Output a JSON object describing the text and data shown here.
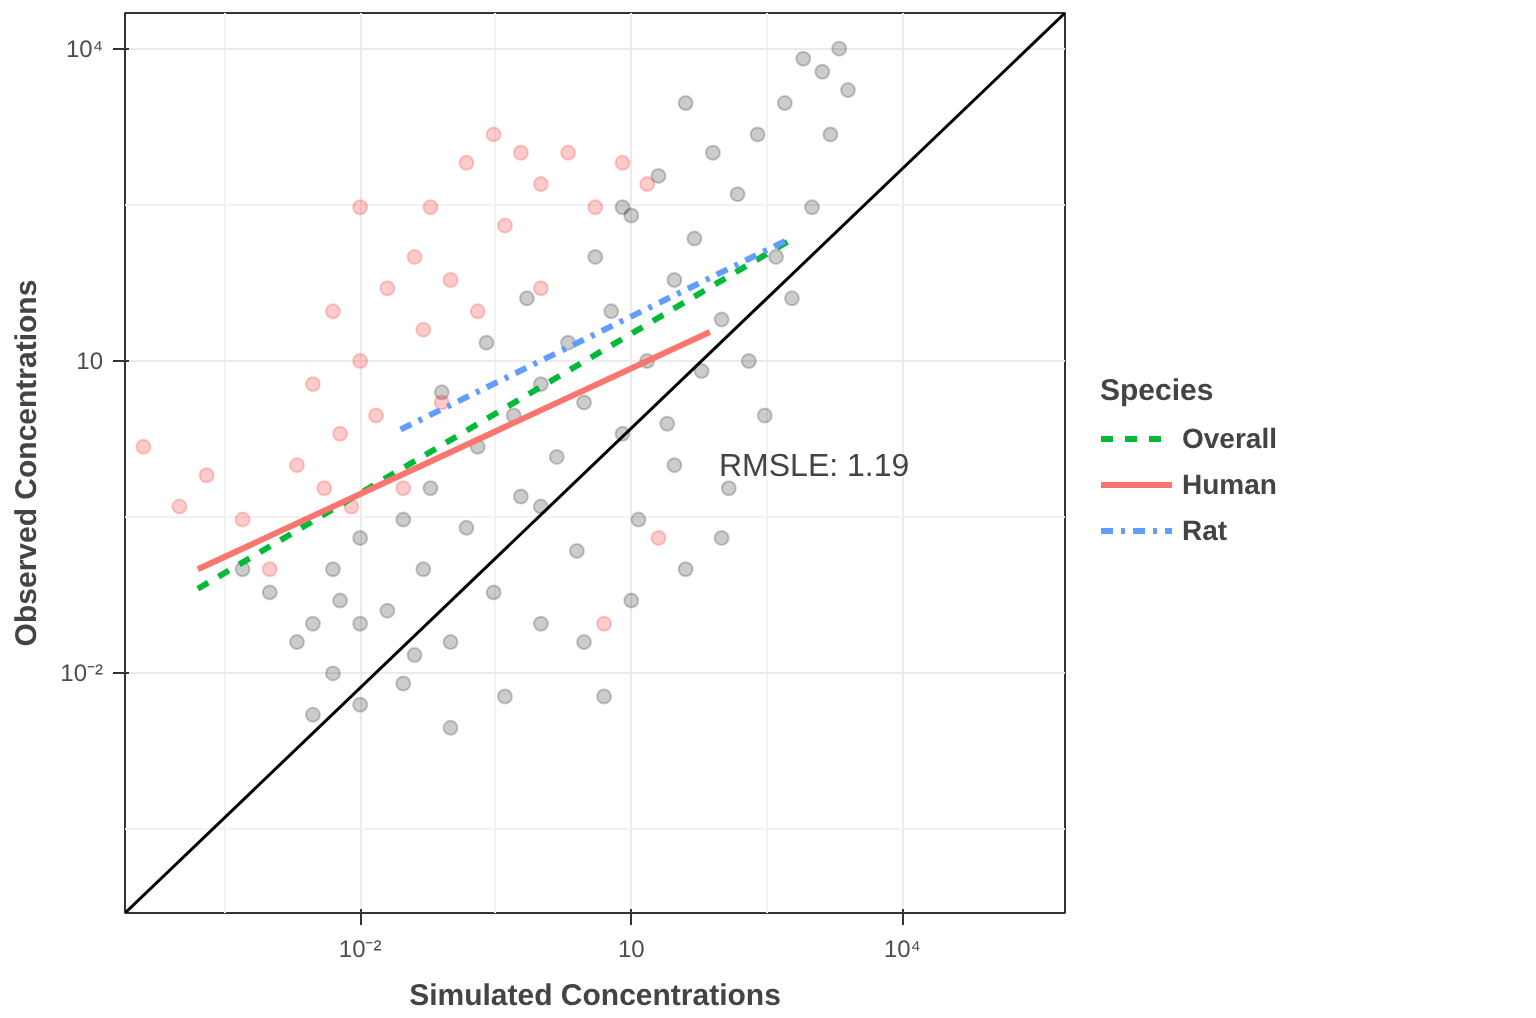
{
  "chart_data": {
    "type": "scatter",
    "xlabel": "Simulated Concentrations",
    "ylabel": "Observed Concentrations",
    "legend_title": "Species",
    "log": "xy",
    "grid": true,
    "legend": "right",
    "marker": "circle",
    "xlim": [
      2.5e-05,
      630000.0
    ],
    "ylim": [
      5e-05,
      22000.0
    ],
    "xticks": [
      {
        "value": 0.000316,
        "label": null
      },
      {
        "value": 0.01,
        "label": "10⁻²"
      },
      {
        "value": 0.316,
        "label": null
      },
      10,
      {
        "value": 316,
        "label": null
      },
      {
        "value": 10000,
        "label": "10⁴"
      }
    ],
    "yticks": [
      {
        "value": 0.000316,
        "label": null
      },
      {
        "value": 0.01,
        "label": "10⁻²"
      },
      {
        "value": 0.316,
        "label": null
      },
      10,
      {
        "value": 316,
        "label": null
      },
      {
        "value": 10000,
        "label": "10⁴"
      }
    ],
    "annotations": [
      "RMSLE: 1.19"
    ],
    "series": [
      {
        "color": "#000000",
        "x": [
          0.0005,
          0.001,
          0.002,
          0.003,
          0.005,
          0.006,
          0.01,
          0.01,
          0.02,
          0.03,
          0.03,
          0.05,
          0.06,
          0.1,
          0.1,
          0.15,
          0.2,
          0.3,
          0.4,
          0.5,
          0.6,
          1,
          1,
          1.5,
          2,
          2.5,
          3,
          4,
          5,
          6,
          8,
          10,
          12,
          15,
          20,
          25,
          30,
          40,
          50,
          60,
          80,
          100,
          120,
          150,
          200,
          250,
          300,
          400,
          500,
          600,
          800,
          1000,
          1300,
          1600,
          2000,
          2500,
          0.08,
          0.25,
          1,
          3,
          10,
          30,
          100,
          0.01,
          0.04,
          0.7,
          8,
          40,
          0.005,
          0.003
        ],
        "values": [
          0.1,
          0.06,
          0.02,
          0.03,
          0.01,
          0.05,
          0.2,
          0.005,
          0.04,
          0.3,
          0.008,
          0.1,
          0.6,
          0.02,
          0.003,
          0.25,
          1.5,
          0.06,
          0.006,
          3,
          0.5,
          6,
          0.03,
          1.2,
          15,
          0.15,
          4,
          100,
          0.006,
          30,
          2,
          250,
          0.3,
          10,
          600,
          2.5,
          60,
          0.1,
          150,
          8,
          1000,
          25,
          0.6,
          400,
          10,
          1500,
          3,
          100,
          3000,
          40,
          8000,
          300,
          6000,
          1500,
          10000,
          4000,
          5,
          15,
          0.4,
          0.02,
          0.05,
          1,
          0.2,
          0.03,
          0.015,
          40,
          300,
          3000,
          0.1,
          0.004
        ]
      },
      {
        "color": "#ff0000",
        "x": [
          4e-05,
          0.0001,
          0.0002,
          0.0005,
          0.001,
          0.002,
          0.003,
          0.004,
          0.005,
          0.006,
          0.008,
          0.01,
          0.01,
          0.015,
          0.02,
          0.03,
          0.04,
          0.05,
          0.06,
          0.08,
          0.1,
          0.15,
          0.2,
          0.3,
          0.4,
          0.6,
          1,
          1,
          2,
          4,
          8,
          15,
          20,
          5
        ],
        "values": [
          1.5,
          0.4,
          0.8,
          0.3,
          0.1,
          1,
          6,
          0.6,
          30,
          2,
          0.4,
          300,
          10,
          3,
          50,
          0.6,
          100,
          20,
          300,
          4,
          60,
          800,
          30,
          1500,
          200,
          1000,
          500,
          50,
          1000,
          300,
          800,
          500,
          0.2,
          0.03
        ]
      },
      {
        "type": "line",
        "color": "#000000",
        "line_style": "solid",
        "marker": "none",
        "x": [
          2.5e-05,
          630000.0
        ],
        "values": [
          5e-05,
          22000.0
        ]
      },
      {
        "type": "line",
        "name": "Overall",
        "color": "#00ba38",
        "line_style": "dashed",
        "marker": "none",
        "x": [
          0.00016,
          575
        ],
        "values": [
          0.065,
          145
        ]
      },
      {
        "type": "line",
        "name": "Human",
        "color": "#f8766d",
        "line_style": "solid",
        "marker": "none",
        "x": [
          0.00016,
          74
        ],
        "values": [
          0.1,
          19
        ]
      },
      {
        "type": "line",
        "name": "Rat",
        "color": "#619cff",
        "line_style": "dashdot",
        "marker": "none",
        "x": [
          0.028,
          575
        ],
        "values": [
          2.2,
          150
        ]
      }
    ]
  }
}
